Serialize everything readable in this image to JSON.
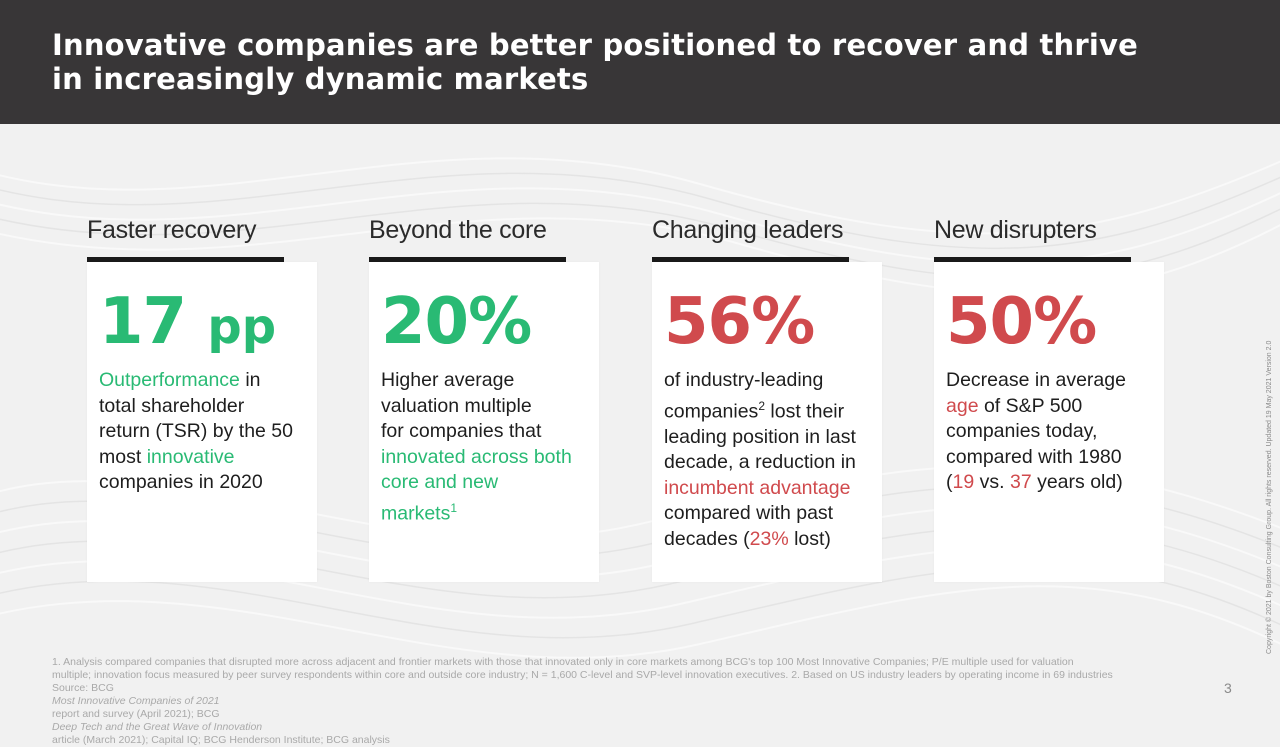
{
  "header": {
    "title_line1": "Innovative companies are better positioned to recover and thrive",
    "title_line2": "in increasingly dynamic markets"
  },
  "columns": [
    {
      "heading": "Faster recovery",
      "stat_number": "17",
      "stat_unit": "pp",
      "stat_color": "#29ba74",
      "desc": {
        "l1_accent": "Outperformance",
        "l1_text": " in",
        "l2": "total shareholder",
        "l3": "return (TSR) by the 50",
        "l4_text": "most ",
        "l4_accent": "innovative",
        "l5": "companies in 2020"
      }
    },
    {
      "heading": "Beyond the core",
      "stat": "20%",
      "stat_color": "#29ba74",
      "desc": {
        "l1": "Higher average",
        "l2": "valuation multiple",
        "l3": "for companies that",
        "l4_accent": "innovated across both",
        "l5_accent": "core and new",
        "l6_accent": "markets",
        "l6_sup": "1"
      }
    },
    {
      "heading": "Changing leaders",
      "stat": "56%",
      "stat_color": "#d04a4d",
      "desc": {
        "l1": "of industry-leading",
        "l2_text": "companies",
        "l2_sup": "2",
        "l2_rest": " lost their",
        "l3": "leading position in last",
        "l4": "decade, a reduction in",
        "l5_accent": "incumbent advantage",
        "l6": "compared with past",
        "l7_text": "decades (",
        "l7_accent": "23%",
        "l7_rest": " lost)"
      }
    },
    {
      "heading": "New disrupters",
      "stat": "50%",
      "stat_color": "#d04a4d",
      "desc": {
        "l1": "Decrease in average",
        "l2_accent": "age",
        "l2_rest": " of S&P 500",
        "l3": "companies today,",
        "l4": "compared with 1980",
        "l5_open": "(",
        "l5_a1": "19",
        "l5_mid": " vs. ",
        "l5_a2": "37",
        "l5_rest": " years old)"
      }
    }
  ],
  "footnotes": {
    "line1": "1. Analysis compared companies that disrupted more across adjacent and frontier markets with those that innovated only in core markets among BCG's top 100 Most Innovative Companies; P/E multiple used for valuation",
    "line2": "multiple; innovation focus measured by peer survey respondents within core and outside core industry; N = 1,600 C-level and SVP-level innovation executives. 2. Based on US industry leaders by operating income in 69 industries",
    "source_prefix": "Source: BCG ",
    "source_italic1": "Most Innovative Companies of 2021",
    "source_mid1": " report and survey (April 2021); BCG ",
    "source_italic2": "Deep Tech and the Great Wave of Innovation",
    "source_rest": " article (March 2021); Capital IQ; BCG Henderson Institute; BCG analysis"
  },
  "page_number": "3",
  "copyright": "Copyright © 2021 by Boston Consulting Group. All rights reserved. Updated 19 May 2021 Version 2.0",
  "colors": {
    "green": "#29ba74",
    "red": "#d04a4d",
    "header_bg": "#383637"
  }
}
